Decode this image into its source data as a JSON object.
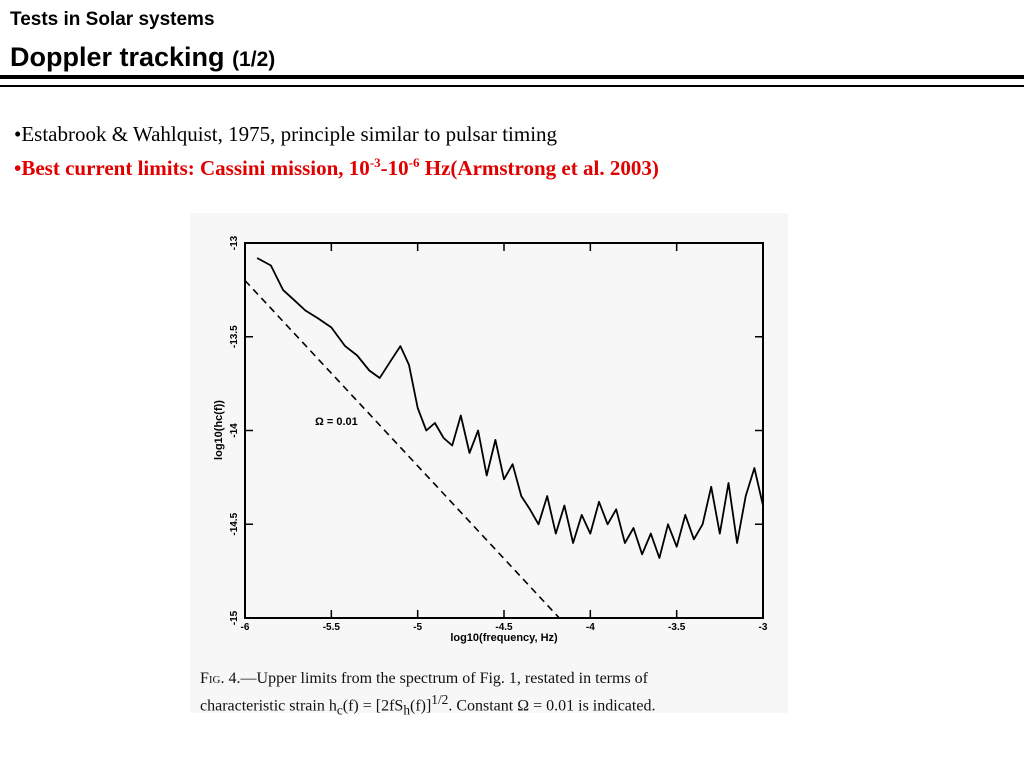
{
  "header": {
    "supertitle": "Tests in Solar systems",
    "title": "Doppler tracking",
    "title_suffix": "(1/2)"
  },
  "bullets": {
    "b1": "•Estabrook & Wahlquist, 1975, principle similar to pulsar timing",
    "b2_pre": "•Best current limits: Cassini mission, 10",
    "b2_exp1": "-3",
    "b2_mid": "-10",
    "b2_exp2": "-6",
    "b2_post": " Hz(Armstrong et al. 2003)"
  },
  "caption": {
    "fig_label": "Fig. 4.",
    "text1": "—Upper limits from the spectrum of Fig. 1, restated in terms of",
    "text2": "characteristic strain h",
    "text2_sub": "c",
    "text2_b": "(f) = [2fS",
    "text2_sub2": "h",
    "text2_c": "(f)]",
    "text2_exp": "1/2",
    "text2_d": ". Constant Ω = 0.01 is indicated."
  },
  "chart_data": {
    "type": "line",
    "xlabel": "log10(frequency, Hz)",
    "ylabel": "log10(hc(f))",
    "xlim": [
      -6,
      -3
    ],
    "ylim": [
      -15,
      -13
    ],
    "xticks": [
      "-6",
      "-5.5",
      "-5",
      "-4.5",
      "-4",
      "-3.5",
      "-3"
    ],
    "yticks": [
      "-13",
      "-13.5",
      "-14",
      "-14.5",
      "-15"
    ],
    "annotation": "Ω = 0.01",
    "series": [
      {
        "style": "solid",
        "x": [
          -5.93,
          -5.85,
          -5.78,
          -5.72,
          -5.65,
          -5.58,
          -5.5,
          -5.42,
          -5.35,
          -5.28,
          -5.22,
          -5.15,
          -5.1,
          -5.05,
          -5.0,
          -4.95,
          -4.9,
          -4.85,
          -4.8,
          -4.75,
          -4.7,
          -4.65,
          -4.6,
          -4.55,
          -4.5,
          -4.45,
          -4.4,
          -4.35,
          -4.3,
          -4.25,
          -4.2,
          -4.15,
          -4.1,
          -4.05,
          -4.0,
          -3.95,
          -3.9,
          -3.85,
          -3.8,
          -3.75,
          -3.7,
          -3.65,
          -3.6,
          -3.55,
          -3.5,
          -3.45,
          -3.4,
          -3.35,
          -3.3,
          -3.25,
          -3.2,
          -3.15,
          -3.1,
          -3.05,
          -3.0
        ],
        "y": [
          -13.08,
          -13.12,
          -13.25,
          -13.3,
          -13.36,
          -13.4,
          -13.45,
          -13.55,
          -13.6,
          -13.68,
          -13.72,
          -13.62,
          -13.55,
          -13.65,
          -13.88,
          -14.0,
          -13.96,
          -14.04,
          -14.08,
          -13.92,
          -14.12,
          -14.0,
          -14.24,
          -14.05,
          -14.26,
          -14.18,
          -14.35,
          -14.42,
          -14.5,
          -14.35,
          -14.55,
          -14.4,
          -14.6,
          -14.45,
          -14.55,
          -14.38,
          -14.5,
          -14.42,
          -14.6,
          -14.52,
          -14.66,
          -14.55,
          -14.68,
          -14.5,
          -14.62,
          -14.45,
          -14.58,
          -14.5,
          -14.3,
          -14.55,
          -14.28,
          -14.6,
          -14.35,
          -14.2,
          -14.4
        ]
      },
      {
        "style": "dashed",
        "x": [
          -6.0,
          -4.18
        ],
        "y": [
          -13.2,
          -15.0
        ]
      }
    ]
  }
}
